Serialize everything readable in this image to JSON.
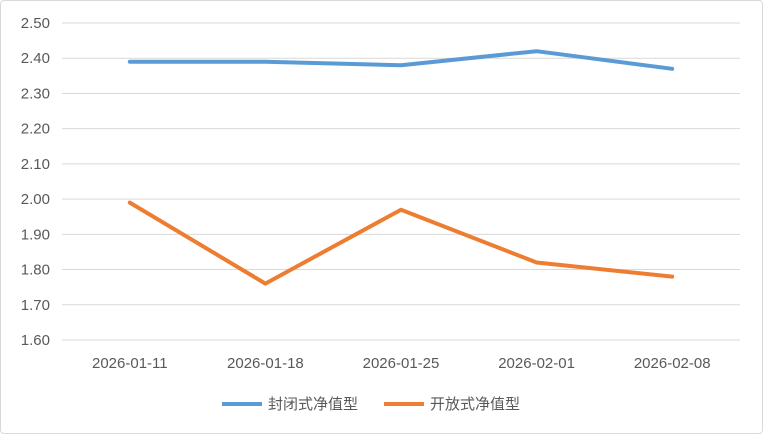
{
  "chart_data": {
    "type": "line",
    "categories": [
      "2026-01-11",
      "2026-01-18",
      "2026-01-25",
      "2026-02-01",
      "2026-02-08"
    ],
    "ylim": [
      1.6,
      2.5
    ],
    "yticks": [
      "1.60",
      "1.70",
      "1.80",
      "1.90",
      "2.00",
      "2.10",
      "2.20",
      "2.30",
      "2.40",
      "2.50"
    ],
    "grid": true,
    "legend_position": "bottom",
    "series": [
      {
        "name": "封闭式净值型",
        "color": "#5B9BD5",
        "values": [
          2.39,
          2.39,
          2.38,
          2.42,
          2.37
        ]
      },
      {
        "name": "开放式净值型",
        "color": "#ED7D31",
        "values": [
          1.99,
          1.76,
          1.97,
          1.82,
          1.78
        ]
      }
    ]
  }
}
